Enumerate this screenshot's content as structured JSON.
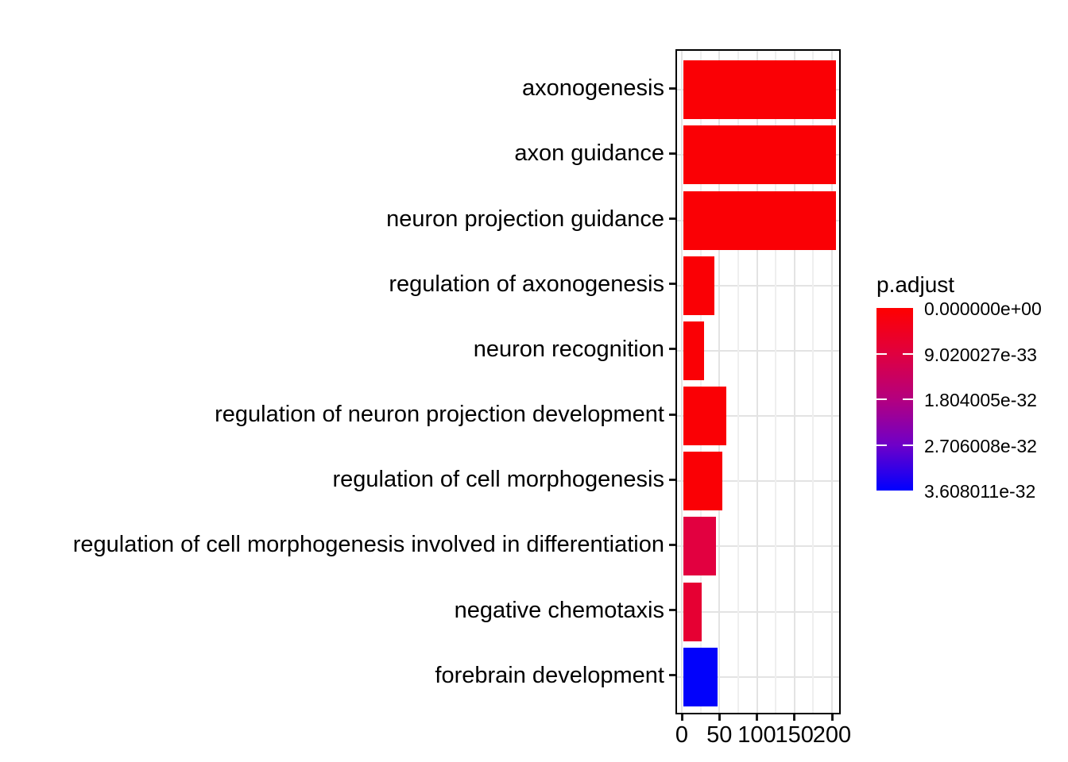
{
  "chart_data": {
    "type": "bar",
    "orientation": "horizontal",
    "title": "",
    "xlabel": "",
    "ylabel": "",
    "categories": [
      "axonogenesis",
      "axon guidance",
      "neuron projection guidance",
      "regulation of axonogenesis",
      "neuron recognition",
      "regulation of neuron projection development",
      "regulation of cell morphogenesis",
      "regulation of cell morphogenesis involved in differentiation",
      "negative chemotaxis",
      "forebrain development"
    ],
    "values": [
      203,
      203,
      203,
      41,
      27,
      57,
      52,
      43,
      24,
      46
    ],
    "bar_colors": [
      "#FA0005",
      "#FA0005",
      "#FA0005",
      "#FA0005",
      "#FA0005",
      "#FA0005",
      "#FA0005",
      "#E20040",
      "#E60033",
      "#0202FB"
    ],
    "x_ticks": [
      0,
      50,
      100,
      150,
      200
    ],
    "x_tick_labels": [
      "0",
      "50",
      "100",
      "150",
      "200"
    ],
    "x_minor_ticks": [
      25,
      75,
      125,
      175
    ],
    "xlim": [
      0,
      211
    ],
    "grid": {
      "vertical_major": true,
      "vertical_minor": true,
      "horizontal_major": true
    },
    "colors": {
      "grid_major": "#E3E3E3",
      "grid_minor": "#EFEFEF",
      "panel_border": "#000000",
      "axis_text": "#000000",
      "background": "#FFFFFF"
    },
    "legend": {
      "type": "colorbar",
      "position": "right",
      "title": "p.adjust",
      "top_color": "#FF0000",
      "bottom_color": "#0000FF",
      "tick_labels": [
        "0.000000e+00",
        "9.020027e-33",
        "1.804005e-32",
        "2.706008e-32",
        "3.608011e-32"
      ]
    }
  }
}
